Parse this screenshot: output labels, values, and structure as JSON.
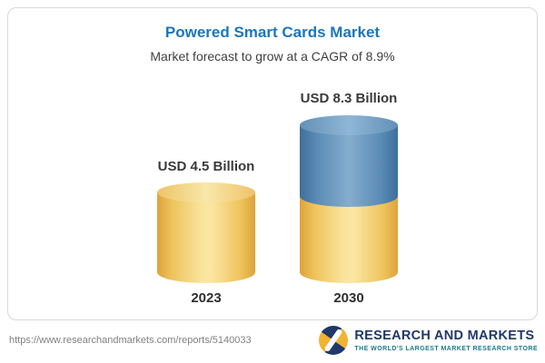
{
  "chart_data": {
    "type": "bar",
    "categories": [
      "2023",
      "2030"
    ],
    "values": [
      4.5,
      8.3
    ],
    "unit": "USD Billion",
    "value_labels": [
      "USD 4.5 Billion",
      "USD 8.3 Billion"
    ],
    "title": "Powered Smart Cards Market",
    "subtitle": "Market forecast to grow at a CAGR of 8.9%",
    "cagr_percent": 8.9,
    "bar_style": "3d-cylinder",
    "legend_position": "none",
    "grid": false,
    "colors": {
      "base_segment": "#F2CD6E",
      "growth_segment": "#4D81AF"
    },
    "notes": "2030 cylinder is stacked: gold base portion (equal to 2023 value) with blue growth segment on top"
  },
  "header": {
    "title": "Powered Smart Cards Market",
    "subtitle": "Market forecast to grow at a CAGR of 8.9%"
  },
  "bars": [
    {
      "year": "2023",
      "label": "USD 4.5 Billion"
    },
    {
      "year": "2030",
      "label": "USD 8.3 Billion"
    }
  ],
  "footer": {
    "url": "https://www.researchandmarkets.com/reports/5140033",
    "logo": {
      "name": "RESEARCH AND MARKETS",
      "tagline": "THE WORLD'S LARGEST MARKET RESEARCH STORE"
    }
  }
}
